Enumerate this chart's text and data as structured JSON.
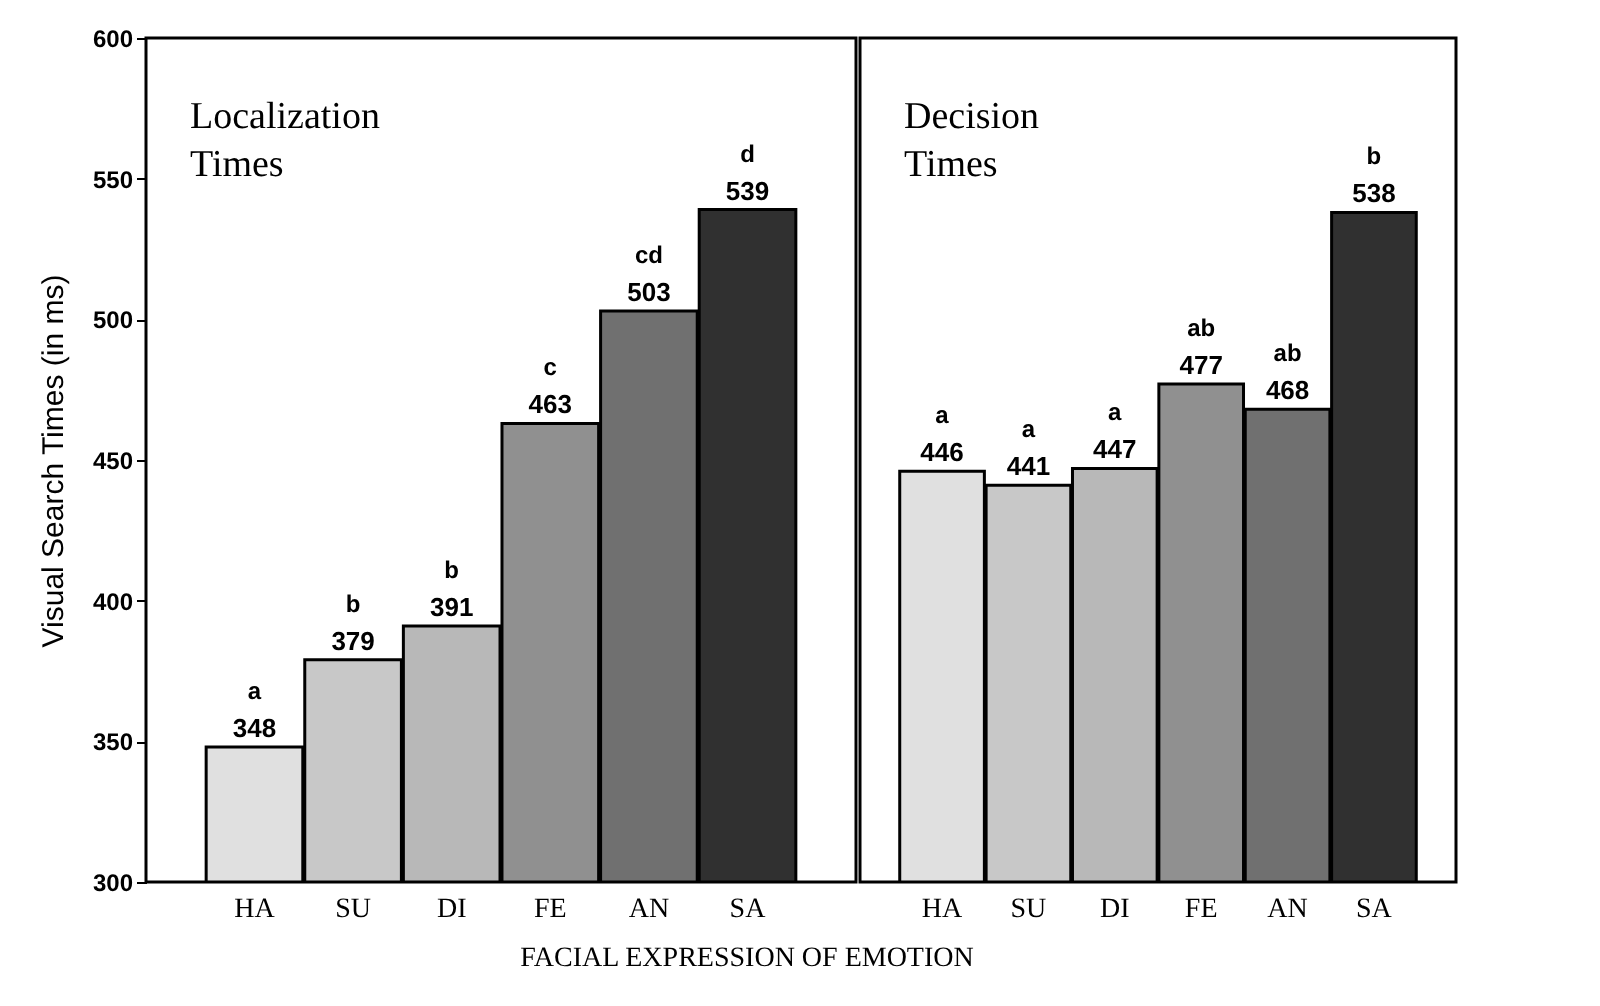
{
  "chart_data": [
    {
      "type": "bar",
      "title": "Localization Times",
      "xlabel": "FACIAL EXPRESSION OF EMOTION",
      "ylabel": "Visual Search Times  (in ms)",
      "categories": [
        "HA",
        "SU",
        "DI",
        "FE",
        "AN",
        "SA"
      ],
      "values": [
        348,
        379,
        391,
        463,
        503,
        539
      ],
      "colors": [
        "#e0e0e0",
        "#c8c8c8",
        "#b8b8b8",
        "#909090",
        "#707070",
        "#303030"
      ],
      "ylim": [
        300,
        600
      ],
      "yticks": [
        300,
        350,
        400,
        450,
        500,
        550,
        600
      ],
      "data_labels": true,
      "annotations": [
        {
          "text": "a",
          "x": "HA",
          "y": 348
        },
        {
          "text": "b",
          "x": "SU",
          "y": 379
        },
        {
          "text": "b",
          "x": "DI",
          "y": 391
        },
        {
          "text": "c",
          "x": "FE",
          "y": 463
        },
        {
          "text": "cd",
          "x": "AN",
          "y": 503
        },
        {
          "text": "d",
          "x": "SA",
          "y": 539
        }
      ]
    },
    {
      "type": "bar",
      "title": "Decision Times",
      "categories": [
        "HA",
        "SU",
        "DI",
        "FE",
        "AN",
        "SA"
      ],
      "values": [
        446,
        441,
        447,
        477,
        468,
        538
      ],
      "colors": [
        "#e0e0e0",
        "#c8c8c8",
        "#b8b8b8",
        "#909090",
        "#707070",
        "#303030"
      ],
      "ylim": [
        300,
        600
      ],
      "yticks": [
        300,
        350,
        400,
        450,
        500,
        550,
        600
      ],
      "data_labels": true,
      "tick_labels": "x",
      "annotations": [
        {
          "text": "a",
          "x": "HA",
          "y": 446
        },
        {
          "text": "a",
          "x": "SU",
          "y": 441
        },
        {
          "text": "a",
          "x": "DI",
          "y": 447
        },
        {
          "text": "ab",
          "x": "FE",
          "y": 477
        },
        {
          "text": "ab",
          "x": "AN",
          "y": 468
        },
        {
          "text": "b",
          "x": "SA",
          "y": 538
        }
      ]
    }
  ]
}
